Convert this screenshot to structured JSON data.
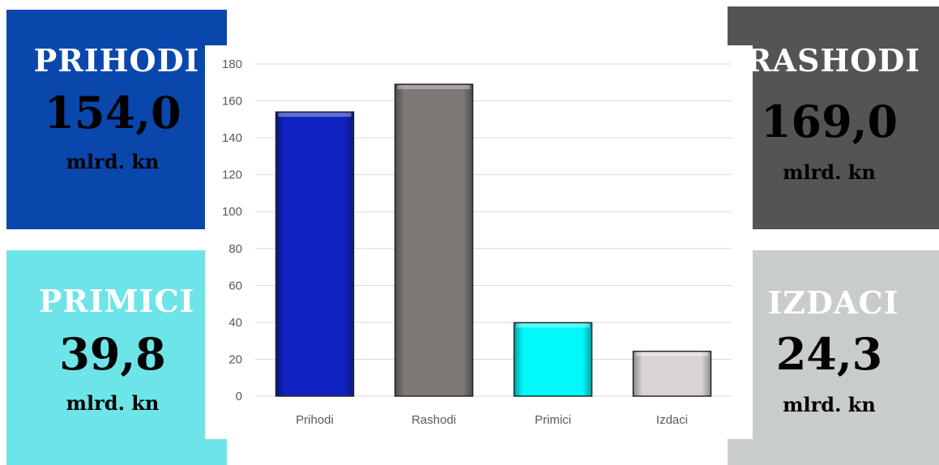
{
  "boxes": {
    "prihodi": {
      "title": "PRIHODI",
      "value": "154,0",
      "unit": "mlrd. kn"
    },
    "rashodi": {
      "title": "RASHODI",
      "value": "169,0",
      "unit": "mlrd. kn"
    },
    "primici": {
      "title": "PRIMICI",
      "value": "39,8",
      "unit": "mlrd. kn"
    },
    "izdaci": {
      "title": "IZDACI",
      "value": "24,3",
      "unit": "mlrd. kn"
    }
  },
  "colors": {
    "prihodi_box": "#0a47ad",
    "rashodi_box": "#545454",
    "primici_box": "#6de4e8",
    "izdaci_box": "#c9cccc"
  },
  "chart_data": {
    "type": "bar",
    "categories": [
      "Prihodi",
      "Rashodi",
      "Primici",
      "Izdaci"
    ],
    "values": [
      154.0,
      169.0,
      39.8,
      24.3
    ],
    "colors": [
      "#1023c0",
      "#7d7775",
      "#00fafa",
      "#d9d4d4"
    ],
    "ylim": [
      0,
      180
    ],
    "yticks": [
      0,
      20,
      40,
      60,
      80,
      100,
      120,
      140,
      160,
      180
    ],
    "grid": true,
    "title": "",
    "xlabel": "",
    "ylabel": ""
  }
}
